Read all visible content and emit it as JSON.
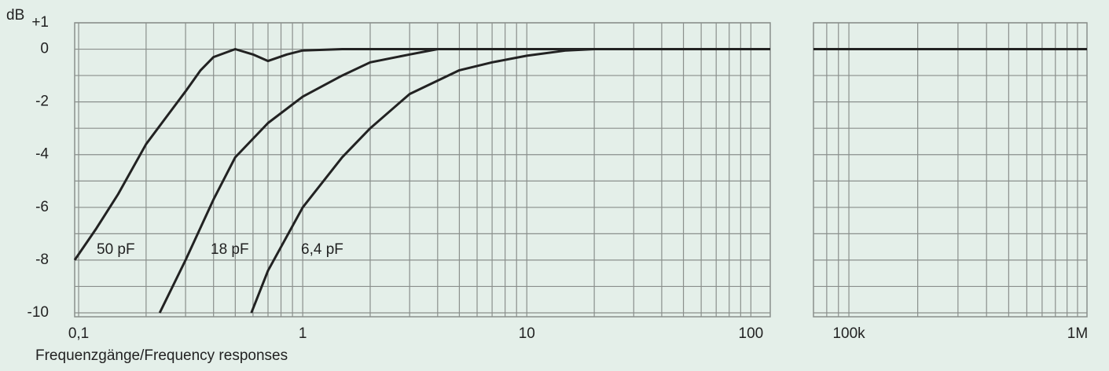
{
  "chart_data": {
    "type": "line",
    "caption": "Frequenzgänge/Frequency responses",
    "y_label": "dB",
    "ylim": [
      -10.15,
      1
    ],
    "yticks": [
      {
        "value": 1,
        "label": "+1"
      },
      0,
      -2,
      -4,
      -6,
      -8,
      -10
    ],
    "y_minor_ticks": [
      -1,
      -3,
      -5,
      -7,
      -9
    ],
    "xscale": "log",
    "xlim": [
      0.096,
      122
    ],
    "xticks": [
      {
        "value": 0.1,
        "label": "0,1"
      },
      1,
      10,
      100
    ],
    "x_minor_ticks": [
      0.2,
      0.3,
      0.4,
      0.5,
      0.6,
      0.7,
      0.8,
      0.9,
      2,
      3,
      4,
      5,
      6,
      7,
      8,
      9,
      20,
      30,
      40,
      50,
      60,
      70,
      80,
      90
    ],
    "x2lim": [
      70000,
      1100000
    ],
    "x2ticks": [
      {
        "value": 100000,
        "label": "100k"
      },
      {
        "value": 1000000,
        "label": "1M"
      }
    ],
    "x2_minor_ticks": [
      80000,
      90000,
      200000,
      300000,
      400000,
      500000,
      600000,
      700000,
      800000,
      900000
    ],
    "grid": true,
    "color": "#222222",
    "series": [
      {
        "name": "50 pF",
        "x": [
          0.096,
          0.12,
          0.15,
          0.2,
          0.25,
          0.3,
          0.35,
          0.4,
          0.5,
          0.6,
          0.7,
          0.85,
          1,
          1.5,
          122
        ],
        "values": [
          -8,
          -6.8,
          -5.5,
          -3.6,
          -2.5,
          -1.6,
          -0.8,
          -0.3,
          0,
          -0.2,
          -0.45,
          -0.2,
          -0.05,
          0,
          0
        ]
      },
      {
        "name": "18 pF",
        "x": [
          0.23,
          0.3,
          0.4,
          0.5,
          0.7,
          1,
          1.5,
          2,
          3,
          4,
          122
        ],
        "values": [
          -10,
          -8,
          -5.7,
          -4.1,
          -2.8,
          -1.8,
          -1,
          -0.5,
          -0.2,
          0,
          0
        ]
      },
      {
        "name": "6,4 pF",
        "x": [
          0.59,
          0.7,
          1,
          1.5,
          2,
          3,
          5,
          7,
          10,
          15,
          20,
          122
        ],
        "values": [
          -10,
          -8.4,
          -6,
          -4.1,
          -3,
          -1.7,
          -0.8,
          -0.5,
          -0.25,
          -0.05,
          0,
          0
        ]
      },
      {
        "axis": "x2",
        "x": [
          70000,
          1100000
        ],
        "values": [
          0,
          0
        ]
      }
    ]
  }
}
